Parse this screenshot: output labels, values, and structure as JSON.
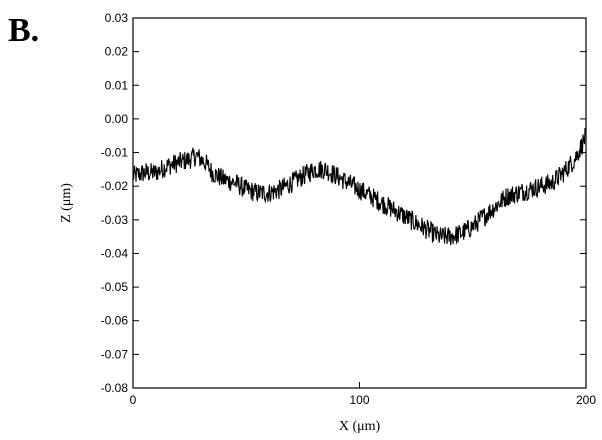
{
  "panel_label": "B.",
  "chart_data": {
    "type": "line",
    "xlabel": "X (μm)",
    "ylabel": "Z (μm)",
    "xlim": [
      0,
      200
    ],
    "ylim": [
      -0.08,
      0.03
    ],
    "xticks": [
      0,
      100,
      200
    ],
    "yticks": [
      -0.08,
      -0.07,
      -0.06,
      -0.05,
      -0.04,
      -0.03,
      -0.02,
      -0.01,
      0.0,
      0.01,
      0.02,
      0.03
    ],
    "ytick_labels": [
      "-0.08",
      "-0.07",
      "-0.06",
      "-0.05",
      "-0.04",
      "-0.03",
      "-0.02",
      "-0.01",
      "0.00",
      "0.01",
      "0.02",
      "0.03"
    ],
    "xtick_labels": [
      "0",
      "100",
      "200"
    ],
    "line_color": "#000000",
    "series": [
      {
        "x": [
          0,
          5,
          10,
          15,
          20,
          25,
          28,
          32,
          35,
          40,
          45,
          50,
          55,
          60,
          65,
          70,
          75,
          80,
          85,
          90,
          95,
          100,
          105,
          110,
          115,
          120,
          125,
          130,
          135,
          140,
          145,
          150,
          155,
          160,
          165,
          170,
          175,
          180,
          185,
          190,
          195,
          198,
          200
        ],
        "values": [
          -0.017,
          -0.016,
          -0.016,
          -0.014,
          -0.013,
          -0.012,
          -0.011,
          -0.013,
          -0.016,
          -0.018,
          -0.019,
          -0.021,
          -0.022,
          -0.022,
          -0.021,
          -0.019,
          -0.017,
          -0.015,
          -0.015,
          -0.017,
          -0.019,
          -0.021,
          -0.023,
          -0.025,
          -0.027,
          -0.029,
          -0.031,
          -0.033,
          -0.035,
          -0.035,
          -0.034,
          -0.032,
          -0.029,
          -0.026,
          -0.023,
          -0.022,
          -0.021,
          -0.02,
          -0.019,
          -0.016,
          -0.012,
          -0.008,
          -0.005
        ]
      }
    ]
  }
}
